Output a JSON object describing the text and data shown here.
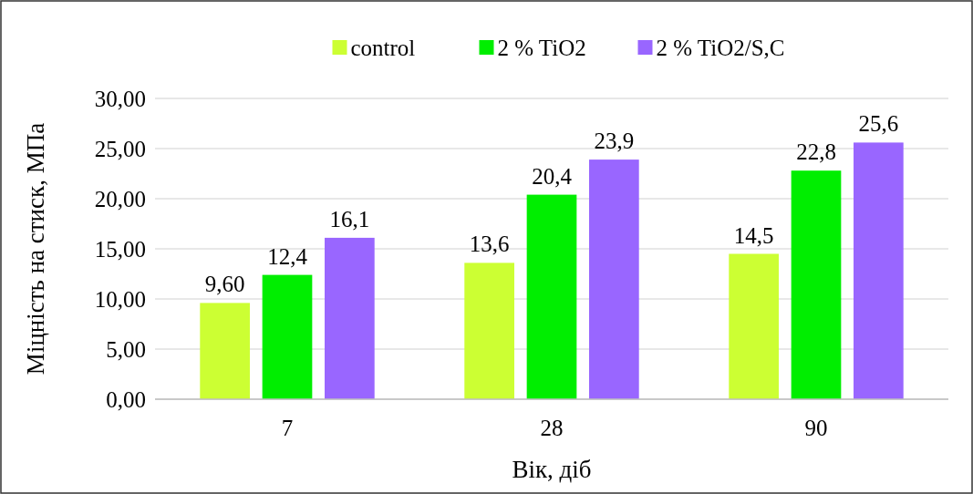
{
  "chart_data": {
    "type": "bar",
    "xlabel": "Вік, діб",
    "ylabel": "Міцність на стиск, МПа",
    "categories": [
      "7",
      "28",
      "90"
    ],
    "series": [
      {
        "name": "control",
        "color": "#ccff33",
        "values": [
          9.6,
          13.6,
          14.5
        ],
        "value_labels": [
          "9,60",
          "13,6",
          "14,5"
        ]
      },
      {
        "name": "2 % TiO2",
        "color": "#00ee00",
        "values": [
          12.4,
          20.4,
          22.8
        ],
        "value_labels": [
          "12,4",
          "20,4",
          "22,8"
        ]
      },
      {
        "name": "2 % TiO2/S,C",
        "color": "#9966ff",
        "values": [
          16.1,
          23.9,
          25.6
        ],
        "value_labels": [
          "16,1",
          "23,9",
          "25,6"
        ]
      }
    ],
    "ylim": [
      0,
      30
    ],
    "yticks": [
      {
        "value": 0,
        "label": "0,00"
      },
      {
        "value": 5,
        "label": "5,00"
      },
      {
        "value": 10,
        "label": "10,00"
      },
      {
        "value": 15,
        "label": "15,00"
      },
      {
        "value": 20,
        "label": "20,00"
      },
      {
        "value": 25,
        "label": "25,00"
      },
      {
        "value": 30,
        "label": "30,00"
      }
    ],
    "grid": "y",
    "legend": "top"
  }
}
